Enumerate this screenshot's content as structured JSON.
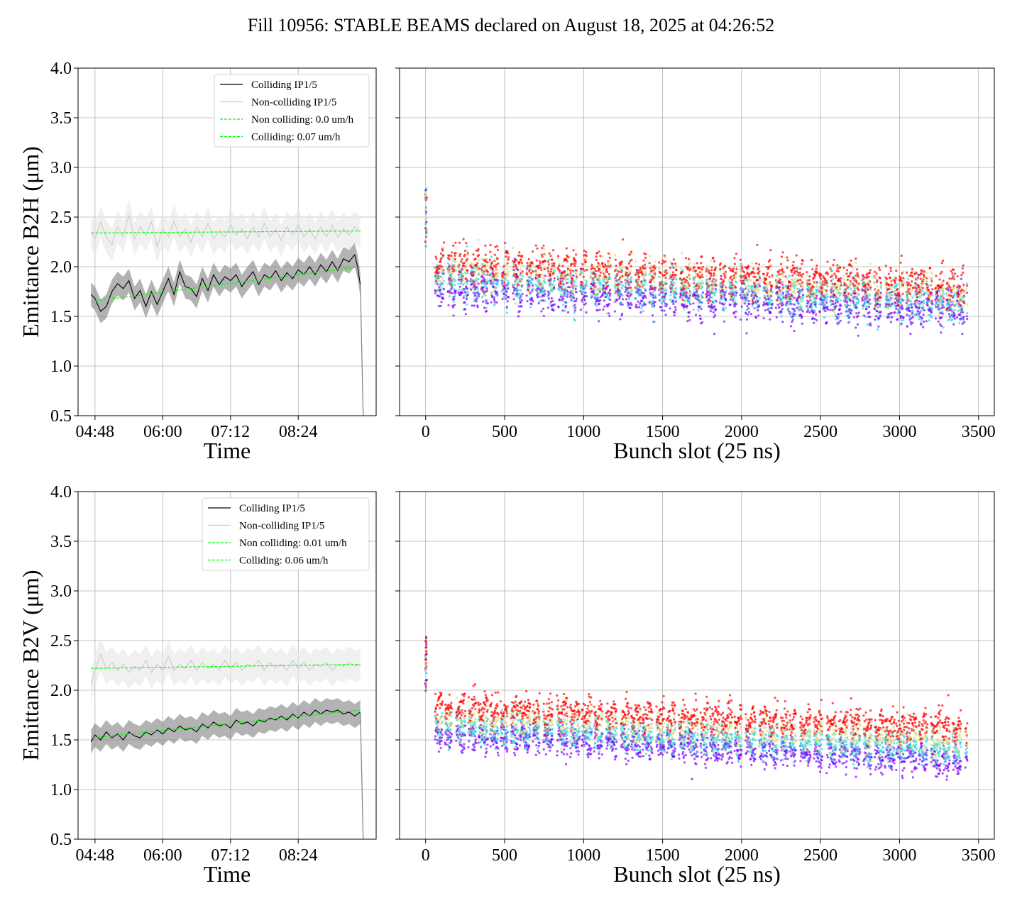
{
  "figure": {
    "title": "Fill 10956: STABLE BEAMS declared on August 18, 2025 at 04:26:52"
  },
  "chart_data": [
    {
      "id": "b2h_time",
      "type": "line",
      "ylabel": "Emittance B2H (μm)",
      "xlabel": "Time",
      "ylim": [
        0.5,
        4.0
      ],
      "yticks": [
        0.5,
        1.0,
        1.5,
        2.0,
        2.5,
        3.0,
        3.5,
        4.0
      ],
      "ytick_labels": [
        "0.5",
        "1.0",
        "1.5",
        "2.0",
        "2.5",
        "3.0",
        "3.5",
        "4.0"
      ],
      "xlim_hours": [
        4.5,
        9.78
      ],
      "xticks_hours": [
        4.8,
        6.0,
        7.2,
        8.4
      ],
      "xtick_labels": [
        "04:48",
        "06:00",
        "07:12",
        "08:24"
      ],
      "grid": true,
      "legend_position": "upper right",
      "legend": [
        "Colliding IP1/5",
        "Non-colliding IP1/5",
        "Non colliding: 0.0 um/h",
        "Colliding: 0.07 um/h"
      ],
      "series": [
        {
          "name": "Colliding IP1/5",
          "color": "#000000",
          "band_color": "#808080",
          "t_start_hours": 4.73,
          "t_end_hours": 9.5,
          "points": [
            [
              4.73,
              1.72
            ],
            [
              4.8,
              1.68
            ],
            [
              4.9,
              1.55
            ],
            [
              5.0,
              1.6
            ],
            [
              5.1,
              1.75
            ],
            [
              5.2,
              1.83
            ],
            [
              5.3,
              1.78
            ],
            [
              5.4,
              1.86
            ],
            [
              5.5,
              1.68
            ],
            [
              5.6,
              1.76
            ],
            [
              5.7,
              1.6
            ],
            [
              5.8,
              1.75
            ],
            [
              5.9,
              1.62
            ],
            [
              6.0,
              1.75
            ],
            [
              6.1,
              1.88
            ],
            [
              6.2,
              1.72
            ],
            [
              6.3,
              1.95
            ],
            [
              6.4,
              1.8
            ],
            [
              6.5,
              1.78
            ],
            [
              6.6,
              1.7
            ],
            [
              6.7,
              1.88
            ],
            [
              6.8,
              1.76
            ],
            [
              6.9,
              1.92
            ],
            [
              7.0,
              1.82
            ],
            [
              7.1,
              1.9
            ],
            [
              7.2,
              1.86
            ],
            [
              7.3,
              1.92
            ],
            [
              7.4,
              1.8
            ],
            [
              7.5,
              1.88
            ],
            [
              7.6,
              1.95
            ],
            [
              7.7,
              1.82
            ],
            [
              7.8,
              1.92
            ],
            [
              7.9,
              1.88
            ],
            [
              8.0,
              1.96
            ],
            [
              8.1,
              1.86
            ],
            [
              8.2,
              1.94
            ],
            [
              8.3,
              1.88
            ],
            [
              8.4,
              1.97
            ],
            [
              8.5,
              1.92
            ],
            [
              8.6,
              2.0
            ],
            [
              8.7,
              1.92
            ],
            [
              8.8,
              2.02
            ],
            [
              8.9,
              1.95
            ],
            [
              9.0,
              2.05
            ],
            [
              9.1,
              1.96
            ],
            [
              9.2,
              2.08
            ],
            [
              9.3,
              2.05
            ],
            [
              9.4,
              2.12
            ],
            [
              9.45,
              2.0
            ],
            [
              9.5,
              1.82
            ]
          ]
        },
        {
          "name": "Non-colliding IP1/5",
          "color": "#cccccc",
          "band_color": "#e6e6e6",
          "t_start_hours": 4.73,
          "t_end_hours": 9.5,
          "points": [
            [
              4.73,
              2.35
            ],
            [
              4.8,
              2.28
            ],
            [
              4.9,
              2.45
            ],
            [
              5.0,
              2.3
            ],
            [
              5.1,
              2.22
            ],
            [
              5.2,
              2.4
            ],
            [
              5.3,
              2.3
            ],
            [
              5.4,
              2.52
            ],
            [
              5.5,
              2.28
            ],
            [
              5.6,
              2.4
            ],
            [
              5.7,
              2.32
            ],
            [
              5.8,
              2.45
            ],
            [
              5.9,
              2.2
            ],
            [
              6.0,
              2.38
            ],
            [
              6.1,
              2.3
            ],
            [
              6.2,
              2.46
            ],
            [
              6.3,
              2.3
            ],
            [
              6.4,
              2.38
            ],
            [
              6.5,
              2.25
            ],
            [
              6.6,
              2.4
            ],
            [
              6.7,
              2.3
            ],
            [
              6.8,
              2.44
            ],
            [
              6.9,
              2.28
            ],
            [
              7.0,
              2.36
            ],
            [
              7.1,
              2.3
            ],
            [
              7.2,
              2.42
            ],
            [
              7.3,
              2.32
            ],
            [
              7.4,
              2.38
            ],
            [
              7.5,
              2.28
            ],
            [
              7.6,
              2.4
            ],
            [
              7.7,
              2.3
            ],
            [
              7.8,
              2.44
            ],
            [
              7.9,
              2.3
            ],
            [
              8.0,
              2.38
            ],
            [
              8.1,
              2.26
            ],
            [
              8.2,
              2.4
            ],
            [
              8.3,
              2.32
            ],
            [
              8.4,
              2.42
            ],
            [
              8.5,
              2.3
            ],
            [
              8.6,
              2.38
            ],
            [
              8.7,
              2.28
            ],
            [
              8.8,
              2.4
            ],
            [
              8.9,
              2.3
            ],
            [
              9.0,
              2.42
            ],
            [
              9.1,
              2.3
            ],
            [
              9.2,
              2.38
            ],
            [
              9.3,
              2.32
            ],
            [
              9.4,
              2.4
            ],
            [
              9.5,
              2.35
            ]
          ]
        },
        {
          "name": "Non colliding: 0.0 um/h",
          "color": "#00ff00",
          "style": "dashed",
          "points": [
            [
              4.73,
              2.34
            ],
            [
              9.5,
              2.36
            ]
          ]
        },
        {
          "name": "Colliding: 0.07 um/h",
          "color": "#00ff00",
          "style": "dashed",
          "points": [
            [
              4.73,
              1.65
            ],
            [
              9.5,
              2.0
            ]
          ]
        }
      ],
      "end_drop": {
        "color": "#808080",
        "points": [
          [
            9.5,
            1.82
          ],
          [
            9.55,
            0.5
          ]
        ]
      }
    },
    {
      "id": "b2h_bunch",
      "type": "scatter",
      "xlabel": "Bunch slot (25 ns)",
      "ylim": [
        0.5,
        4.0
      ],
      "yticks": [
        0.5,
        1.0,
        1.5,
        2.0,
        2.5,
        3.0,
        3.5,
        4.0
      ],
      "xlim": [
        -165,
        3600
      ],
      "xticks": [
        0,
        500,
        1000,
        1500,
        2000,
        2500,
        3000,
        3500
      ],
      "xtick_labels": [
        "0",
        "500",
        "1000",
        "1500",
        "2000",
        "2500",
        "3000",
        "3500"
      ],
      "grid": true,
      "colors": [
        "#8000ff",
        "#2ad4e8",
        "#d5dc8c",
        "#ff0000"
      ],
      "trains_start": 60,
      "trains_end": 3430,
      "head_bunch_x": 2,
      "head_bunch_range": [
        2.2,
        2.8
      ],
      "level_start": [
        1.78,
        1.86,
        1.94,
        2.02
      ],
      "level_end": [
        1.56,
        1.62,
        1.7,
        1.8
      ],
      "spread": 0.09
    },
    {
      "id": "b2v_time",
      "type": "line",
      "ylabel": "Emittance B2V (μm)",
      "xlabel": "Time",
      "ylim": [
        0.5,
        4.0
      ],
      "yticks": [
        0.5,
        1.0,
        1.5,
        2.0,
        2.5,
        3.0,
        3.5,
        4.0
      ],
      "ytick_labels": [
        "0.5",
        "1.0",
        "1.5",
        "2.0",
        "2.5",
        "3.0",
        "3.5",
        "4.0"
      ],
      "xlim_hours": [
        4.5,
        9.78
      ],
      "xticks_hours": [
        4.8,
        6.0,
        7.2,
        8.4
      ],
      "xtick_labels": [
        "04:48",
        "06:00",
        "07:12",
        "08:24"
      ],
      "grid": true,
      "legend_position": "upper right",
      "legend": [
        "Colliding IP1/5",
        "Non-colliding IP1/5",
        "Non colliding: 0.01 um/h",
        "Colliding: 0.06 um/h"
      ],
      "series": [
        {
          "name": "Colliding IP1/5",
          "color": "#000000",
          "band_color": "#808080",
          "t_start_hours": 4.73,
          "t_end_hours": 9.5,
          "points": [
            [
              4.73,
              1.48
            ],
            [
              4.8,
              1.55
            ],
            [
              4.9,
              1.5
            ],
            [
              5.0,
              1.58
            ],
            [
              5.1,
              1.52
            ],
            [
              5.2,
              1.56
            ],
            [
              5.3,
              1.5
            ],
            [
              5.4,
              1.58
            ],
            [
              5.5,
              1.54
            ],
            [
              5.6,
              1.52
            ],
            [
              5.7,
              1.58
            ],
            [
              5.8,
              1.55
            ],
            [
              5.9,
              1.6
            ],
            [
              6.0,
              1.56
            ],
            [
              6.1,
              1.62
            ],
            [
              6.2,
              1.58
            ],
            [
              6.3,
              1.64
            ],
            [
              6.4,
              1.6
            ],
            [
              6.5,
              1.62
            ],
            [
              6.6,
              1.58
            ],
            [
              6.7,
              1.66
            ],
            [
              6.8,
              1.62
            ],
            [
              6.9,
              1.68
            ],
            [
              7.0,
              1.64
            ],
            [
              7.1,
              1.66
            ],
            [
              7.2,
              1.62
            ],
            [
              7.3,
              1.7
            ],
            [
              7.4,
              1.66
            ],
            [
              7.5,
              1.68
            ],
            [
              7.6,
              1.64
            ],
            [
              7.7,
              1.7
            ],
            [
              7.8,
              1.68
            ],
            [
              7.9,
              1.72
            ],
            [
              8.0,
              1.7
            ],
            [
              8.1,
              1.74
            ],
            [
              8.2,
              1.7
            ],
            [
              8.3,
              1.76
            ],
            [
              8.4,
              1.72
            ],
            [
              8.5,
              1.78
            ],
            [
              8.6,
              1.74
            ],
            [
              8.7,
              1.8
            ],
            [
              8.8,
              1.76
            ],
            [
              8.9,
              1.8
            ],
            [
              9.0,
              1.78
            ],
            [
              9.1,
              1.8
            ],
            [
              9.2,
              1.76
            ],
            [
              9.3,
              1.78
            ],
            [
              9.4,
              1.74
            ],
            [
              9.5,
              1.78
            ]
          ]
        },
        {
          "name": "Non-colliding IP1/5",
          "color": "#cccccc",
          "band_color": "#e6e6e6",
          "t_start_hours": 4.73,
          "t_end_hours": 9.5,
          "points": [
            [
              4.73,
              2.05
            ],
            [
              4.8,
              2.2
            ],
            [
              4.9,
              2.36
            ],
            [
              5.0,
              2.22
            ],
            [
              5.1,
              2.28
            ],
            [
              5.2,
              2.2
            ],
            [
              5.3,
              2.26
            ],
            [
              5.4,
              2.18
            ],
            [
              5.5,
              2.24
            ],
            [
              5.6,
              2.2
            ],
            [
              5.7,
              2.3
            ],
            [
              5.8,
              2.18
            ],
            [
              5.9,
              2.26
            ],
            [
              6.0,
              2.2
            ],
            [
              6.1,
              2.34
            ],
            [
              6.2,
              2.2
            ],
            [
              6.3,
              2.26
            ],
            [
              6.4,
              2.22
            ],
            [
              6.5,
              2.3
            ],
            [
              6.6,
              2.2
            ],
            [
              6.7,
              2.28
            ],
            [
              6.8,
              2.22
            ],
            [
              6.9,
              2.26
            ],
            [
              7.0,
              2.2
            ],
            [
              7.1,
              2.3
            ],
            [
              7.2,
              2.22
            ],
            [
              7.3,
              2.28
            ],
            [
              7.4,
              2.2
            ],
            [
              7.5,
              2.26
            ],
            [
              7.6,
              2.24
            ],
            [
              7.7,
              2.3
            ],
            [
              7.8,
              2.2
            ],
            [
              7.9,
              2.28
            ],
            [
              8.0,
              2.22
            ],
            [
              8.1,
              2.26
            ],
            [
              8.2,
              2.2
            ],
            [
              8.3,
              2.3
            ],
            [
              8.4,
              2.22
            ],
            [
              8.5,
              2.28
            ],
            [
              8.6,
              2.2
            ],
            [
              8.7,
              2.26
            ],
            [
              8.8,
              2.24
            ],
            [
              8.9,
              2.28
            ],
            [
              9.0,
              2.2
            ],
            [
              9.1,
              2.26
            ],
            [
              9.2,
              2.24
            ],
            [
              9.3,
              2.28
            ],
            [
              9.4,
              2.24
            ],
            [
              9.5,
              2.26
            ]
          ]
        },
        {
          "name": "Non colliding: 0.01 um/h",
          "color": "#00ff00",
          "style": "dashed",
          "points": [
            [
              4.73,
              2.22
            ],
            [
              9.5,
              2.26
            ]
          ]
        },
        {
          "name": "Colliding: 0.06 um/h",
          "color": "#00ff00",
          "style": "dashed",
          "points": [
            [
              4.73,
              1.52
            ],
            [
              9.5,
              1.8
            ]
          ]
        }
      ],
      "end_drop": {
        "color": "#808080",
        "points": [
          [
            9.5,
            1.78
          ],
          [
            9.55,
            0.5
          ]
        ]
      }
    },
    {
      "id": "b2v_bunch",
      "type": "scatter",
      "xlabel": "Bunch slot (25 ns)",
      "ylim": [
        0.5,
        4.0
      ],
      "yticks": [
        0.5,
        1.0,
        1.5,
        2.0,
        2.5,
        3.0,
        3.5,
        4.0
      ],
      "xlim": [
        -165,
        3600
      ],
      "xticks": [
        0,
        500,
        1000,
        1500,
        2000,
        2500,
        3000,
        3500
      ],
      "xtick_labels": [
        "0",
        "500",
        "1000",
        "1500",
        "2000",
        "2500",
        "3000",
        "3500"
      ],
      "grid": true,
      "colors": [
        "#8000ff",
        "#2ad4e8",
        "#d5dc8c",
        "#ff0000"
      ],
      "trains_start": 60,
      "trains_end": 3430,
      "head_bunch_x": 2,
      "head_bunch_range": [
        1.9,
        2.55
      ],
      "level_start": [
        1.55,
        1.62,
        1.7,
        1.83
      ],
      "level_end": [
        1.28,
        1.38,
        1.47,
        1.62
      ],
      "spread": 0.07
    }
  ]
}
